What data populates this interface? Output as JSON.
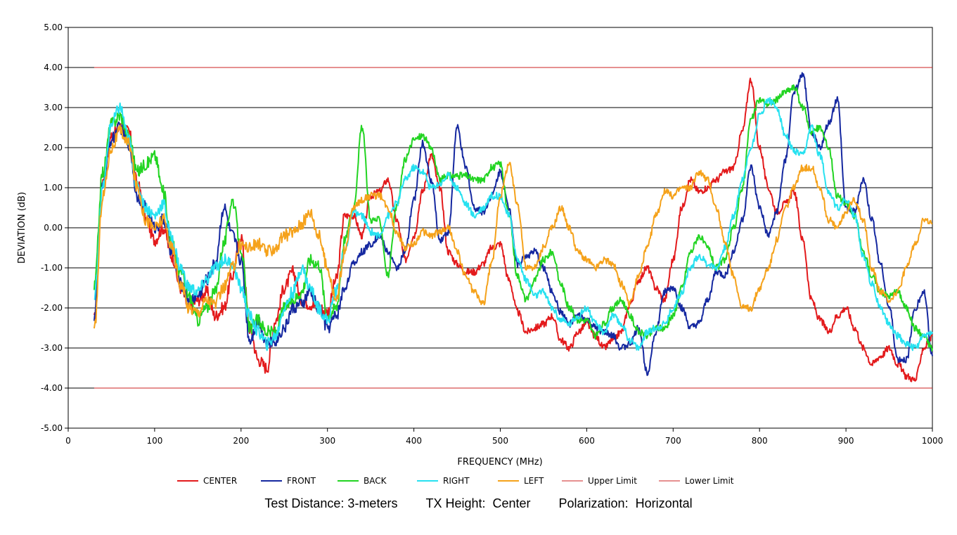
{
  "chart_data": {
    "type": "line",
    "title": "",
    "xlabel": "FREQUENCY (MHz)",
    "ylabel": "DEVIATION (dB)",
    "xlim": [
      0,
      1000
    ],
    "ylim": [
      -5,
      5
    ],
    "x_ticks": [
      "0",
      "100",
      "200",
      "300",
      "400",
      "500",
      "600",
      "700",
      "800",
      "900",
      "1000"
    ],
    "y_ticks": [
      "5.00",
      "4.00",
      "3.00",
      "2.00",
      "1.00",
      "0.00",
      "-1.00",
      "-2.00",
      "-3.00",
      "-4.00",
      "-5.00"
    ],
    "grid": true,
    "legend_position": "bottom",
    "series": [
      {
        "name": "CENTER",
        "color": "#e31a1c",
        "x": [
          30,
          40,
          50,
          60,
          70,
          80,
          90,
          100,
          110,
          120,
          130,
          140,
          150,
          160,
          170,
          180,
          190,
          200,
          210,
          220,
          230,
          240,
          250,
          260,
          270,
          280,
          290,
          300,
          310,
          320,
          330,
          340,
          350,
          360,
          370,
          380,
          390,
          400,
          410,
          420,
          430,
          440,
          450,
          460,
          470,
          480,
          490,
          500,
          510,
          520,
          530,
          540,
          550,
          560,
          570,
          580,
          590,
          600,
          610,
          620,
          630,
          640,
          650,
          660,
          670,
          680,
          690,
          700,
          710,
          720,
          730,
          740,
          750,
          760,
          770,
          780,
          790,
          800,
          810,
          820,
          830,
          840,
          850,
          860,
          870,
          880,
          890,
          900,
          910,
          920,
          930,
          940,
          950,
          960,
          970,
          980,
          990,
          1000
        ],
        "values": [
          -2.3,
          1.2,
          2.3,
          2.5,
          2.4,
          1.1,
          0.2,
          -0.3,
          0.0,
          -0.7,
          -1.5,
          -2.0,
          -1.8,
          -1.6,
          -2.2,
          -2.0,
          -1.2,
          -0.2,
          -2.5,
          -3.3,
          -3.5,
          -2.3,
          -1.5,
          -1.1,
          -1.8,
          -1.9,
          -2.0,
          -2.1,
          -1.3,
          0.3,
          0.3,
          -0.2,
          0.8,
          0.9,
          1.2,
          0.2,
          -0.8,
          -0.2,
          0.9,
          1.8,
          1.0,
          -0.6,
          -0.9,
          -1.1,
          -1.1,
          -0.9,
          -0.5,
          -0.4,
          -1.3,
          -2.1,
          -2.6,
          -2.5,
          -2.4,
          -2.2,
          -2.8,
          -3.0,
          -2.6,
          -2.4,
          -2.7,
          -3.0,
          -2.8,
          -2.6,
          -1.9,
          -1.3,
          -1.0,
          -1.5,
          -1.8,
          -0.8,
          0.5,
          1.2,
          0.9,
          1.0,
          1.2,
          1.4,
          1.5,
          2.4,
          3.7,
          2.0,
          1.0,
          0.4,
          0.6,
          0.9,
          -0.3,
          -1.8,
          -2.3,
          -2.6,
          -2.2,
          -2.0,
          -2.5,
          -3.0,
          -3.4,
          -3.2,
          -3.0,
          -3.4,
          -3.7,
          -3.8,
          -3.0,
          -2.7
        ]
      },
      {
        "name": "FRONT",
        "color": "#1528a0",
        "x": [
          30,
          40,
          50,
          60,
          70,
          80,
          90,
          100,
          110,
          120,
          130,
          140,
          150,
          160,
          170,
          180,
          190,
          200,
          210,
          220,
          230,
          240,
          250,
          260,
          270,
          280,
          290,
          300,
          310,
          320,
          330,
          340,
          350,
          360,
          370,
          380,
          390,
          400,
          410,
          420,
          430,
          440,
          450,
          460,
          470,
          480,
          490,
          500,
          510,
          520,
          530,
          540,
          550,
          560,
          570,
          580,
          590,
          600,
          610,
          620,
          630,
          640,
          650,
          660,
          670,
          680,
          690,
          700,
          710,
          720,
          730,
          740,
          750,
          760,
          770,
          780,
          790,
          800,
          810,
          820,
          830,
          840,
          850,
          860,
          870,
          880,
          890,
          900,
          910,
          920,
          930,
          940,
          950,
          960,
          970,
          980,
          990,
          1000
        ],
        "values": [
          -2.2,
          1.1,
          2.2,
          2.5,
          2.1,
          0.8,
          0.5,
          0.0,
          0.2,
          -0.6,
          -1.4,
          -1.8,
          -1.7,
          -1.3,
          -0.9,
          0.5,
          -0.2,
          -0.8,
          -2.8,
          -2.3,
          -2.9,
          -2.8,
          -2.5,
          -2.0,
          -1.9,
          -1.6,
          -2.0,
          -2.5,
          -2.2,
          -1.5,
          -0.9,
          -0.6,
          -0.4,
          -0.2,
          -0.6,
          -1.0,
          -0.6,
          0.7,
          2.1,
          1.2,
          -0.3,
          -0.1,
          2.5,
          1.5,
          0.5,
          0.4,
          0.8,
          1.4,
          0.5,
          -0.9,
          -0.7,
          -0.6,
          -1.0,
          -1.6,
          -2.1,
          -2.4,
          -2.2,
          -2.3,
          -2.5,
          -2.6,
          -2.7,
          -3.0,
          -2.9,
          -2.5,
          -3.6,
          -2.6,
          -1.6,
          -1.5,
          -2.0,
          -2.5,
          -2.4,
          -1.8,
          -1.1,
          -1.2,
          -0.6,
          0.2,
          1.5,
          0.5,
          -0.2,
          0.4,
          1.7,
          3.4,
          3.8,
          2.4,
          2.0,
          2.6,
          3.2,
          0.5,
          0.4,
          1.2,
          0.2,
          -0.9,
          -2.0,
          -3.3,
          -3.3,
          -2.0,
          -1.6,
          -3.2
        ]
      },
      {
        "name": "BACK",
        "color": "#22d422",
        "x": [
          30,
          40,
          50,
          60,
          70,
          80,
          90,
          100,
          110,
          120,
          130,
          140,
          150,
          160,
          170,
          180,
          190,
          200,
          210,
          220,
          230,
          240,
          250,
          260,
          270,
          280,
          290,
          300,
          310,
          320,
          330,
          340,
          350,
          360,
          370,
          380,
          390,
          400,
          410,
          420,
          430,
          440,
          450,
          460,
          470,
          480,
          490,
          500,
          510,
          520,
          530,
          540,
          550,
          560,
          570,
          580,
          590,
          600,
          610,
          620,
          630,
          640,
          650,
          660,
          670,
          680,
          690,
          700,
          710,
          720,
          730,
          740,
          750,
          760,
          770,
          780,
          790,
          800,
          810,
          820,
          830,
          840,
          850,
          860,
          870,
          880,
          890,
          900,
          910,
          920,
          930,
          940,
          950,
          960,
          970,
          980,
          990,
          1000
        ],
        "values": [
          -1.5,
          1.4,
          2.6,
          2.8,
          2.3,
          1.4,
          1.6,
          1.8,
          0.9,
          -0.4,
          -1.1,
          -1.7,
          -2.3,
          -2.0,
          -1.6,
          -0.4,
          0.7,
          -0.5,
          -2.5,
          -2.3,
          -2.6,
          -2.6,
          -2.0,
          -1.8,
          -1.6,
          -0.8,
          -0.9,
          -2.2,
          -2.0,
          -0.3,
          0.5,
          2.5,
          0.2,
          0.2,
          -1.2,
          0.5,
          1.7,
          2.2,
          2.3,
          2.0,
          1.2,
          1.3,
          1.3,
          1.3,
          1.2,
          1.2,
          1.5,
          1.6,
          0.3,
          -1.2,
          -1.8,
          -1.3,
          -0.8,
          -0.6,
          -1.4,
          -2.0,
          -2.3,
          -2.3,
          -2.7,
          -2.4,
          -2.0,
          -1.8,
          -2.2,
          -2.6,
          -2.7,
          -2.5,
          -2.5,
          -2.2,
          -1.5,
          -0.6,
          -0.2,
          -0.5,
          -1.0,
          -0.8,
          0.0,
          1.0,
          2.7,
          3.2,
          3.1,
          3.2,
          3.4,
          3.5,
          3.0,
          2.4,
          2.5,
          2.0,
          0.8,
          0.6,
          0.3,
          -0.6,
          -1.2,
          -1.6,
          -1.7,
          -1.6,
          -2.0,
          -2.5,
          -2.7,
          -3.0
        ]
      },
      {
        "name": "RIGHT",
        "color": "#27e1f0",
        "x": [
          30,
          40,
          50,
          60,
          70,
          80,
          90,
          100,
          110,
          120,
          130,
          140,
          150,
          160,
          170,
          180,
          190,
          200,
          210,
          220,
          230,
          240,
          250,
          260,
          270,
          280,
          290,
          300,
          310,
          320,
          330,
          340,
          350,
          360,
          370,
          380,
          390,
          400,
          410,
          420,
          430,
          440,
          450,
          460,
          470,
          480,
          490,
          500,
          510,
          520,
          530,
          540,
          550,
          560,
          570,
          580,
          590,
          600,
          610,
          620,
          630,
          640,
          650,
          660,
          670,
          680,
          690,
          700,
          710,
          720,
          730,
          740,
          750,
          760,
          770,
          780,
          790,
          800,
          810,
          820,
          830,
          840,
          850,
          860,
          870,
          880,
          890,
          900,
          910,
          920,
          930,
          940,
          950,
          960,
          970,
          980,
          990,
          1000
        ],
        "values": [
          -1.8,
          1.0,
          2.6,
          3.0,
          2.2,
          1.0,
          0.5,
          0.3,
          0.6,
          -0.3,
          -1.0,
          -1.5,
          -1.6,
          -1.3,
          -1.0,
          -0.8,
          -0.9,
          -1.5,
          -2.2,
          -2.6,
          -2.9,
          -2.7,
          -2.0,
          -1.6,
          -1.0,
          -1.5,
          -2.0,
          -2.3,
          -1.6,
          -0.6,
          0.4,
          0.3,
          -0.1,
          -0.2,
          0.3,
          0.6,
          1.2,
          1.5,
          1.4,
          1.0,
          1.1,
          1.3,
          1.0,
          0.6,
          0.3,
          0.5,
          0.8,
          0.8,
          0.3,
          -0.8,
          -1.3,
          -1.7,
          -1.6,
          -2.0,
          -2.3,
          -2.4,
          -2.2,
          -2.0,
          -2.4,
          -2.6,
          -2.2,
          -2.4,
          -2.8,
          -3.0,
          -2.6,
          -2.5,
          -2.4,
          -2.0,
          -1.6,
          -1.0,
          -0.7,
          -0.9,
          -1.0,
          -0.5,
          0.3,
          1.2,
          2.0,
          2.8,
          3.2,
          3.0,
          2.3,
          1.9,
          1.8,
          2.5,
          1.8,
          0.9,
          0.5,
          0.7,
          0.3,
          -0.7,
          -1.4,
          -2.0,
          -2.4,
          -2.7,
          -2.9,
          -3.0,
          -2.7,
          -2.6
        ]
      },
      {
        "name": "LEFT",
        "color": "#f5a21b",
        "x": [
          30,
          40,
          50,
          60,
          70,
          80,
          90,
          100,
          110,
          120,
          130,
          140,
          150,
          160,
          170,
          180,
          190,
          200,
          210,
          220,
          230,
          240,
          250,
          260,
          270,
          280,
          290,
          300,
          310,
          320,
          330,
          340,
          350,
          360,
          370,
          380,
          390,
          400,
          410,
          420,
          430,
          440,
          450,
          460,
          470,
          480,
          490,
          500,
          510,
          520,
          530,
          540,
          550,
          560,
          570,
          580,
          590,
          600,
          610,
          620,
          630,
          640,
          650,
          660,
          670,
          680,
          690,
          700,
          710,
          720,
          730,
          740,
          750,
          760,
          770,
          780,
          790,
          800,
          810,
          820,
          830,
          840,
          850,
          860,
          870,
          880,
          890,
          900,
          910,
          920,
          930,
          940,
          950,
          960,
          970,
          980,
          990,
          1000
        ],
        "values": [
          -2.6,
          0.8,
          2.0,
          2.4,
          2.1,
          1.0,
          0.2,
          0.0,
          0.2,
          -0.5,
          -1.4,
          -2.0,
          -2.1,
          -1.8,
          -1.9,
          -1.5,
          -1.0,
          -0.4,
          -0.5,
          -0.4,
          -0.6,
          -0.5,
          -0.2,
          -0.1,
          0.1,
          0.4,
          -0.2,
          -1.0,
          -1.8,
          -0.6,
          0.5,
          0.7,
          0.8,
          0.8,
          0.5,
          -0.1,
          -0.5,
          -0.4,
          -0.1,
          -0.2,
          -0.1,
          0.0,
          -0.6,
          -1.2,
          -1.6,
          -1.9,
          -0.9,
          0.8,
          1.6,
          0.6,
          -1.0,
          -1.0,
          -0.5,
          0.0,
          0.5,
          0.0,
          -0.6,
          -0.8,
          -1.0,
          -0.8,
          -0.9,
          -1.4,
          -1.9,
          -1.2,
          -0.5,
          0.3,
          0.9,
          0.8,
          1.0,
          1.0,
          1.4,
          1.2,
          0.5,
          -0.4,
          -1.2,
          -2.0,
          -2.0,
          -1.5,
          -1.0,
          -0.3,
          0.5,
          1.0,
          1.5,
          1.5,
          1.0,
          0.2,
          0.0,
          0.4,
          0.7,
          0.2,
          -1.0,
          -1.6,
          -1.8,
          -1.6,
          -1.0,
          -0.4,
          0.2,
          0.1
        ]
      },
      {
        "name": "Upper Limit",
        "color": "#cc2020",
        "x": [
          30,
          1000
        ],
        "values": [
          4,
          4
        ]
      },
      {
        "name": "Lower Limit",
        "color": "#cc2020",
        "x": [
          30,
          1000
        ],
        "values": [
          -4,
          -4
        ]
      }
    ]
  },
  "caption": {
    "distance": "Test Distance: 3-meters",
    "tx_height": "TX Height:  Center",
    "polarization": "Polarization:  Horizontal"
  }
}
